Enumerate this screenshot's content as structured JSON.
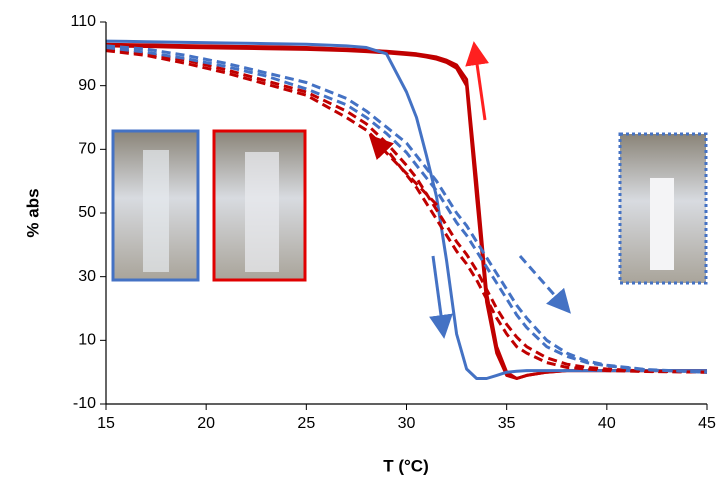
{
  "chart_data": {
    "type": "line",
    "x_label": "T (°C)",
    "y_label": "% abs",
    "x": [
      15,
      17,
      19,
      21,
      23,
      25,
      27,
      28,
      29,
      30,
      30.5,
      31,
      31.5,
      32,
      32.5,
      33,
      33.5,
      34,
      34.5,
      35,
      35.5,
      36,
      37,
      38,
      39,
      40,
      42,
      45
    ],
    "series": [
      {
        "color": "#c00000",
        "dash": false,
        "values": [
          103,
          102.8,
          102.6,
          102.4,
          102.2,
          102,
          101.5,
          101.2,
          100.8,
          100.3,
          100,
          99.5,
          99,
          98,
          96.5,
          92,
          60,
          25,
          8,
          0,
          -2,
          -1,
          0,
          0.5,
          0.5,
          0.5,
          0.5,
          0.5
        ]
      },
      {
        "color": "#c00000",
        "dash": false,
        "values": [
          102.5,
          102.3,
          102,
          101.8,
          101.6,
          101.4,
          101,
          100.7,
          100.3,
          99.8,
          99.5,
          99,
          98.3,
          97.3,
          95.5,
          90,
          55,
          22,
          6,
          -1,
          -2,
          -1,
          0,
          0.5,
          0.5,
          0.5,
          0.5,
          0.5
        ]
      },
      {
        "color": "#4472c4",
        "dash": false,
        "values": [
          104,
          103.8,
          103.6,
          103.4,
          103.2,
          103,
          102.5,
          102,
          100,
          88,
          80,
          68,
          55,
          35,
          12,
          1,
          -2,
          -2,
          -1,
          0,
          0.3,
          0.5,
          0.5,
          0.5,
          0.5,
          0.5,
          0.5,
          0.5
        ]
      },
      {
        "color": "#c00000",
        "dash": true,
        "values": [
          101,
          99.5,
          97,
          94,
          90.5,
          87,
          80,
          76,
          70,
          62,
          58,
          53,
          48,
          43,
          38,
          34,
          29,
          23,
          17,
          12,
          8,
          6,
          3,
          1.5,
          1,
          0.5,
          0.2,
          0
        ]
      },
      {
        "color": "#c00000",
        "dash": true,
        "values": [
          101.5,
          100,
          98,
          95,
          91.5,
          88,
          82,
          78,
          72,
          65,
          61,
          56,
          51,
          46,
          41,
          37,
          32,
          26,
          20,
          15,
          11,
          8,
          4.5,
          2.5,
          1.5,
          1,
          0.3,
          0
        ]
      },
      {
        "color": "#4472c4",
        "dash": true,
        "values": [
          102,
          100.5,
          98.5,
          96,
          93,
          89,
          84,
          80,
          75,
          69,
          65,
          61,
          57,
          52,
          47,
          43,
          38,
          33,
          28,
          23,
          18,
          14,
          8,
          5,
          3,
          2,
          0.7,
          0
        ]
      },
      {
        "color": "#4472c4",
        "dash": true,
        "values": [
          102.5,
          101.5,
          99.5,
          97,
          94,
          91,
          86,
          82,
          77,
          72,
          68,
          64,
          60,
          55,
          50,
          46,
          41,
          36,
          31,
          26,
          21,
          17,
          10,
          6,
          3.5,
          2.2,
          0.8,
          0
        ]
      }
    ],
    "xlim": [
      15,
      45
    ],
    "xticks": [
      15,
      20,
      25,
      30,
      35,
      40,
      45
    ],
    "ylim": [
      -10,
      110
    ],
    "yticks": [
      -10,
      10,
      30,
      50,
      70,
      90,
      110
    ]
  }
}
